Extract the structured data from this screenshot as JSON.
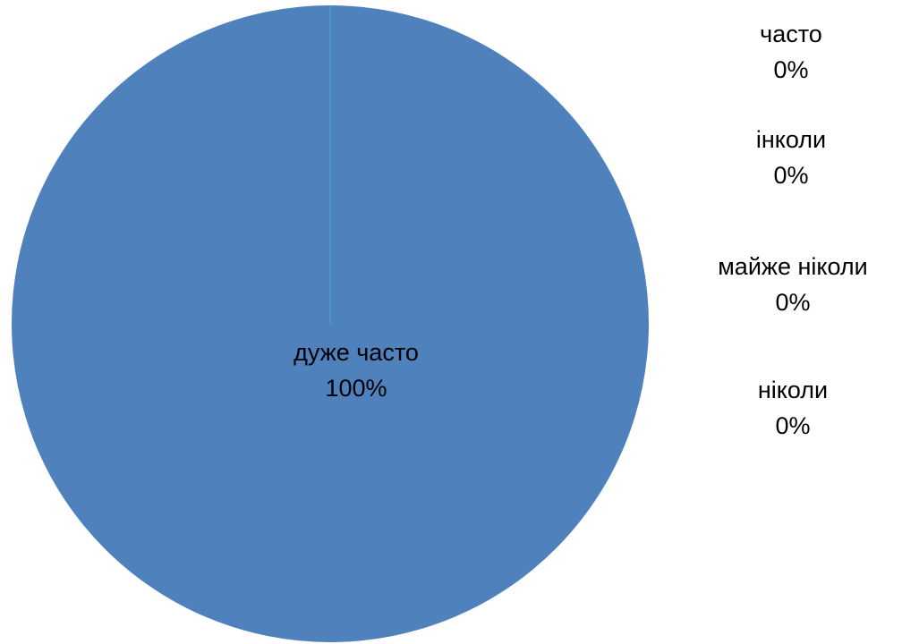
{
  "chart_data": {
    "type": "pie",
    "categories": [
      "дуже часто",
      "часто",
      "інколи",
      "майже ніколи",
      "ніколи"
    ],
    "values": [
      100,
      0,
      0,
      0,
      0
    ],
    "percent_labels": [
      "100%",
      "0%",
      "0%",
      "0%",
      "0%"
    ],
    "colors": [
      "#4F81BD",
      "#4BACC6",
      "#4BACC6",
      "#4BACC6",
      "#4BACC6"
    ],
    "title": "",
    "legend": "none",
    "data_labels": "category-and-percent"
  },
  "labels": {
    "very_often": {
      "name": "дуже часто",
      "pct": "100%"
    },
    "often": {
      "name": "часто",
      "pct": "0%"
    },
    "sometimes": {
      "name": "інколи",
      "pct": "0%"
    },
    "almost_never": {
      "name": "майже ніколи",
      "pct": "0%"
    },
    "never": {
      "name": "ніколи",
      "pct": "0%"
    }
  }
}
